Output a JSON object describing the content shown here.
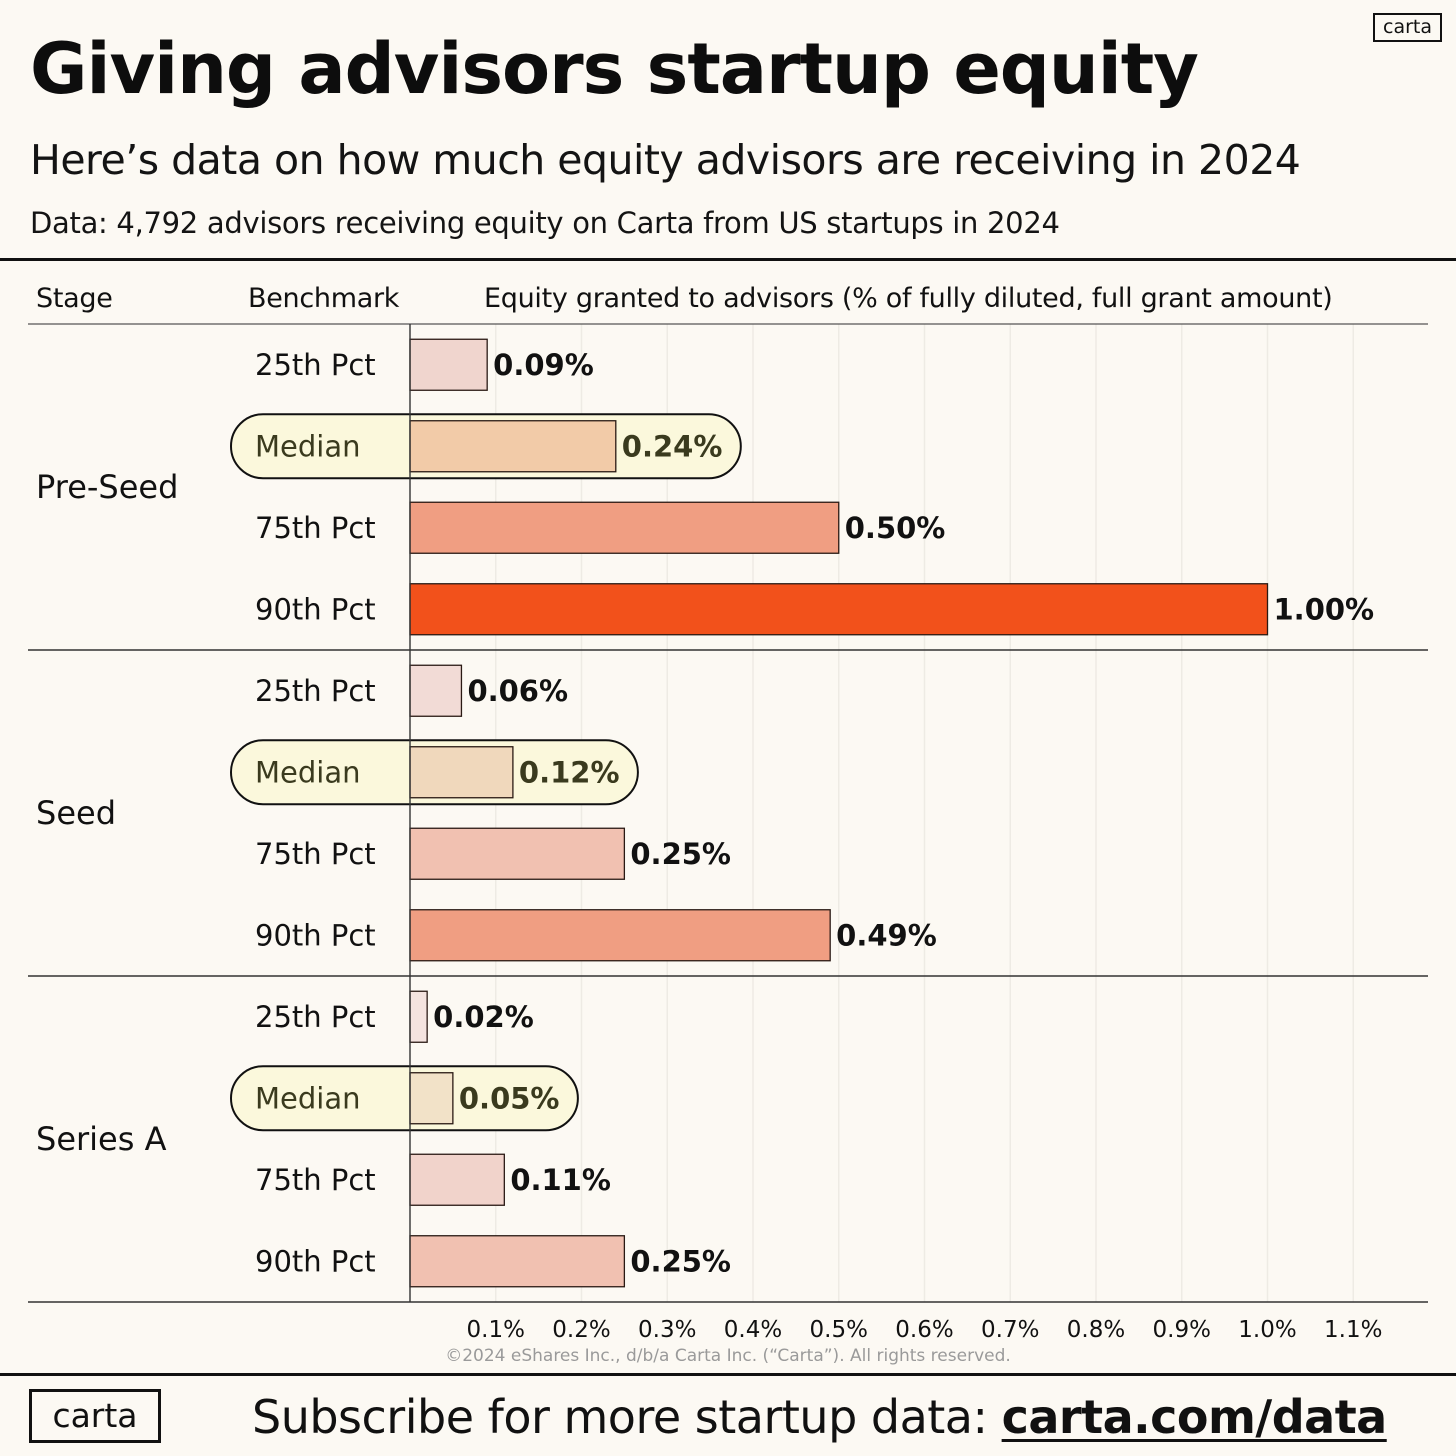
{
  "header": {
    "title": "Giving advisors startup equity",
    "subtitle": "Here’s data on how much equity advisors are receiving in 2024",
    "source": "Data: 4,792 advisors receiving equity on Carta from US startups in 2024",
    "logo": "carta"
  },
  "columns": {
    "stage": "Stage",
    "benchmark": "Benchmark",
    "equity": "Equity granted to advisors (% of fully diluted, full grant amount)"
  },
  "chart_data": {
    "type": "bar",
    "orientation": "horizontal",
    "xlabel": "Equity granted to advisors (% of fully diluted, full grant amount)",
    "x_unit": "%",
    "xlim": [
      0,
      1.1
    ],
    "ticks": [
      0.1,
      0.2,
      0.3,
      0.4,
      0.5,
      0.6,
      0.7,
      0.8,
      0.9,
      1.0,
      1.1
    ],
    "tick_labels": [
      "0.1%",
      "0.2%",
      "0.3%",
      "0.4%",
      "0.5%",
      "0.6%",
      "0.7%",
      "0.8%",
      "0.9%",
      "1.0%",
      "1.1%"
    ],
    "grid": "vertical",
    "highlight": "Median",
    "groups": [
      {
        "stage": "Pre-Seed",
        "bars": [
          {
            "benchmark": "25th Pct",
            "value": 0.09,
            "label": "0.09%",
            "color": "#f0d5ce"
          },
          {
            "benchmark": "Median",
            "value": 0.24,
            "label": "0.24%",
            "color": "#f2cba8"
          },
          {
            "benchmark": "75th Pct",
            "value": 0.5,
            "label": "0.50%",
            "color": "#f09e82"
          },
          {
            "benchmark": "90th Pct",
            "value": 1.0,
            "label": "1.00%",
            "color": "#f2511b"
          }
        ]
      },
      {
        "stage": "Seed",
        "bars": [
          {
            "benchmark": "25th Pct",
            "value": 0.06,
            "label": "0.06%",
            "color": "#f2dbd6"
          },
          {
            "benchmark": "Median",
            "value": 0.12,
            "label": "0.12%",
            "color": "#f0d8bc"
          },
          {
            "benchmark": "75th Pct",
            "value": 0.25,
            "label": "0.25%",
            "color": "#f1c1b1"
          },
          {
            "benchmark": "90th Pct",
            "value": 0.49,
            "label": "0.49%",
            "color": "#f09e82"
          }
        ]
      },
      {
        "stage": "Series A",
        "bars": [
          {
            "benchmark": "25th Pct",
            "value": 0.02,
            "label": "0.02%",
            "color": "#f4e3df"
          },
          {
            "benchmark": "Median",
            "value": 0.05,
            "label": "0.05%",
            "color": "#f2e2c8"
          },
          {
            "benchmark": "75th Pct",
            "value": 0.11,
            "label": "0.11%",
            "color": "#f1d3cb"
          },
          {
            "benchmark": "90th Pct",
            "value": 0.25,
            "label": "0.25%",
            "color": "#f1c1b1"
          }
        ]
      }
    ],
    "colors": {
      "highlight_fill": "#fbf8dc",
      "grid": "#eeebe4",
      "rule": "#111111"
    }
  },
  "footer": {
    "copyright": "©2024 eShares Inc., d/b/a Carta Inc. (“Carta”). All rights reserved.",
    "logo": "carta",
    "cta_text": "Subscribe for more startup data: ",
    "cta_link": "carta.com/data"
  }
}
